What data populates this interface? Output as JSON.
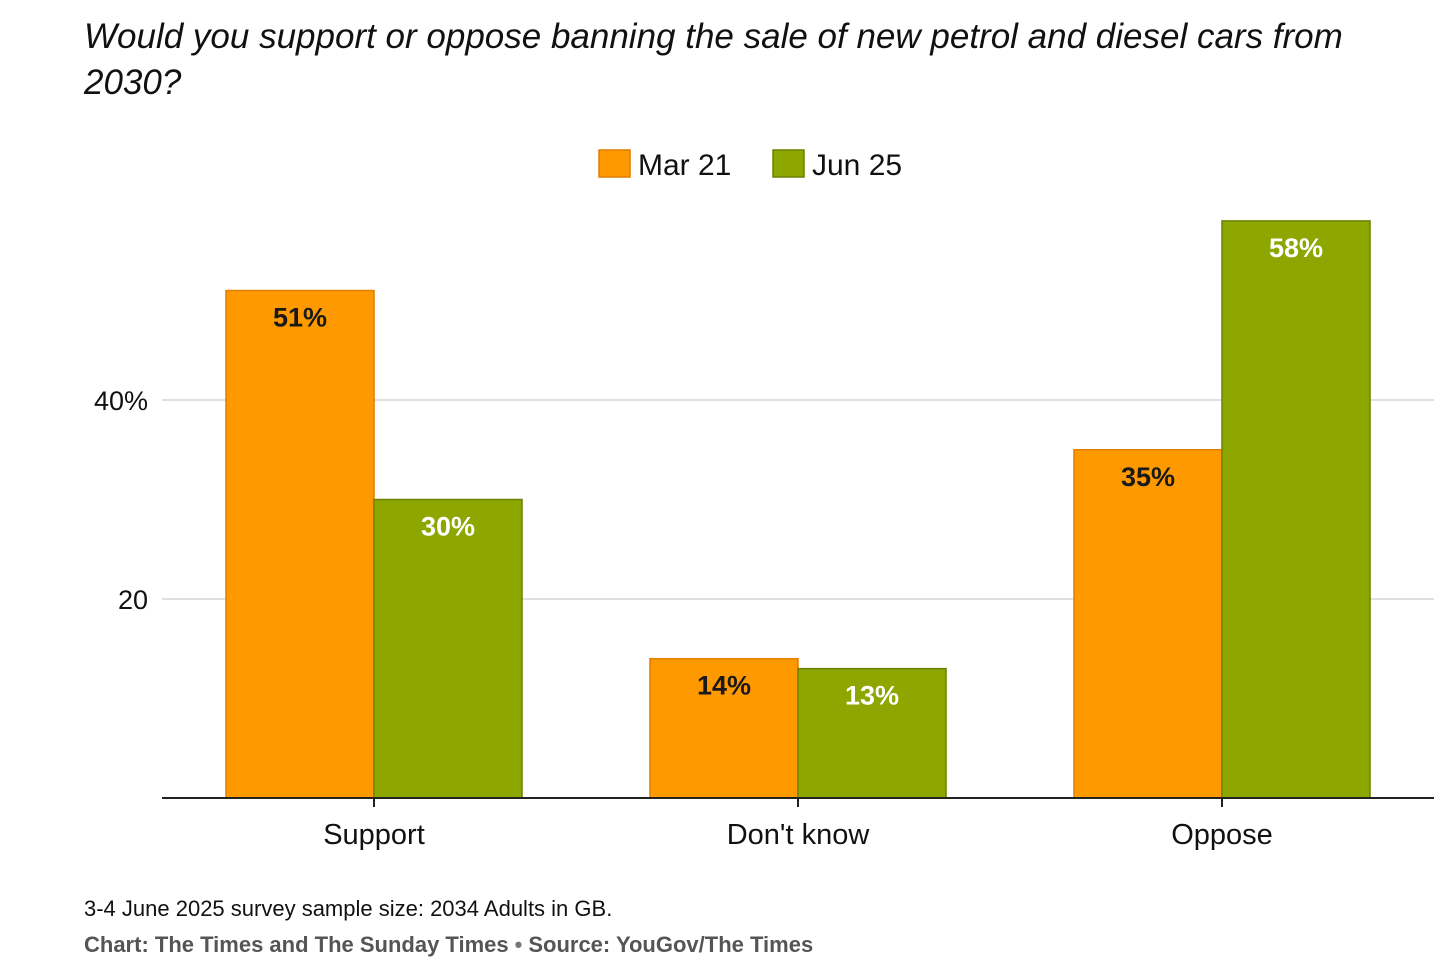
{
  "chart_data": {
    "type": "bar",
    "title": "Would you support or oppose banning the sale of new petrol and diesel cars from 2030?",
    "categories": [
      "Support",
      "Don't know",
      "Oppose"
    ],
    "series": [
      {
        "name": "Mar 21",
        "color": "#ff9900",
        "values": [
          51,
          14,
          35
        ],
        "labels": [
          "51%",
          "14%",
          "35%"
        ]
      },
      {
        "name": "Jun 25",
        "color": "#8ea600",
        "values": [
          30,
          13,
          58
        ],
        "labels": [
          "30%",
          "13%",
          "58%"
        ]
      }
    ],
    "yticks": [
      {
        "value": 20,
        "label": "20"
      },
      {
        "value": 40,
        "label": "40%"
      }
    ],
    "ylim": [
      0,
      60
    ],
    "grid": true,
    "legend": "top-center",
    "xlabel": "",
    "ylabel": ""
  },
  "footer": {
    "note": "3-4 June 2025 survey sample size: 2034 Adults in GB.",
    "credit": "Chart: The Times and The Sunday Times",
    "separator": "•",
    "source": "Source: YouGov/The Times"
  }
}
